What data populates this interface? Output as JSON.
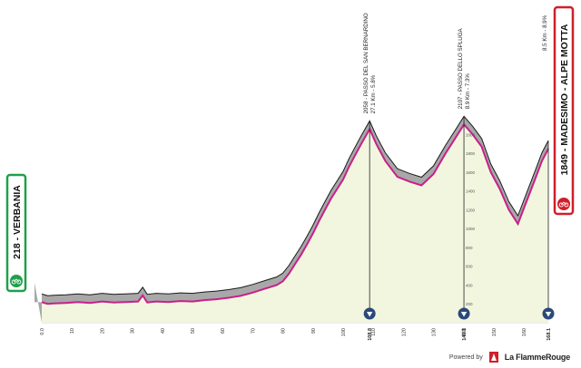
{
  "start": {
    "elevation": "218",
    "name": "VERBANIA",
    "color": "#1fa04a"
  },
  "finish": {
    "elevation": "1849",
    "name": "MADESIMO - ALPE MOTTA",
    "color": "#d01f2a"
  },
  "pass_labels": [
    {
      "line1": "2058 - PASSO DEL SAN BERNARDINO",
      "line2": "27.1 Km - 5.8%"
    },
    {
      "line1": "2107 - PASSO DELLO SPLUGA",
      "line2": "8.9 Km - 7.3%"
    },
    {
      "line1": "8.5 Km - 8.9%",
      "line2": ""
    }
  ],
  "marker_labels": [
    "108.8",
    "140.1",
    "168.1"
  ],
  "footer": {
    "powered_by": "Powered by",
    "brand": "La FlammeRouge"
  },
  "colors": {
    "fill": "#f3f6df",
    "road_line": "#c8208a",
    "shoulder": "#a8a8a8",
    "shoulder_top": "#1a1a1a",
    "marker": "#2b4a7a"
  },
  "chart_data": {
    "type": "area",
    "x_unit": "km",
    "y_unit": "m",
    "xlim": [
      0,
      168.1
    ],
    "ylim": [
      0,
      2200
    ],
    "x_ticks": [
      0.0,
      10,
      20,
      30,
      40,
      50,
      60,
      70,
      80,
      90,
      100,
      110,
      120,
      130,
      140,
      150,
      160
    ],
    "x_tick_labels": [
      "0.0",
      "10",
      "20",
      "30",
      "40",
      "50",
      "60",
      "70",
      "80",
      "90",
      "100",
      "110",
      "120",
      "130",
      "140",
      "150",
      "160"
    ],
    "y_ticks": [
      200,
      400,
      600,
      800,
      1000,
      1200,
      1400,
      1600,
      1800,
      2000
    ],
    "y_tick_labels": [
      "200",
      "400",
      "600",
      "800",
      "1000",
      "1200",
      "1400",
      "1600",
      "1800",
      "2000"
    ],
    "y_axis_km": 140.1,
    "series": [
      {
        "x": [
          0,
          2,
          4,
          8,
          12,
          16,
          20,
          24,
          28,
          32,
          33.5,
          35,
          38,
          42,
          46,
          50,
          54,
          58,
          62,
          66,
          70,
          74,
          78,
          80,
          82,
          84,
          86,
          88,
          90,
          92,
          94,
          96,
          98,
          100,
          102,
          104,
          106,
          108.8,
          111,
          114,
          118,
          122,
          126,
          130,
          134,
          137,
          140.1,
          143,
          146,
          149,
          152,
          155,
          158,
          161,
          164,
          166,
          168.1
        ],
        "y": [
          218,
          200,
          205,
          210,
          220,
          210,
          225,
          215,
          220,
          225,
          290,
          215,
          225,
          220,
          230,
          225,
          240,
          250,
          265,
          285,
          320,
          360,
          400,
          440,
          520,
          620,
          720,
          830,
          950,
          1080,
          1200,
          1320,
          1420,
          1520,
          1660,
          1780,
          1900,
          2058,
          1900,
          1720,
          1550,
          1500,
          1460,
          1580,
          1800,
          1950,
          2107,
          2000,
          1870,
          1600,
          1420,
          1200,
          1050,
          1300,
          1550,
          1720,
          1849
        ]
      }
    ]
  }
}
